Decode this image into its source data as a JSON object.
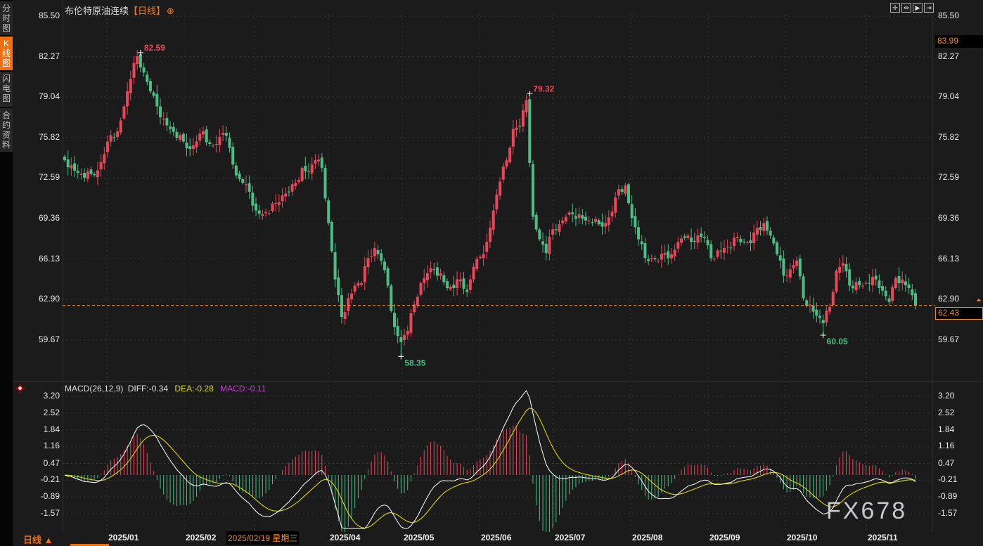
{
  "sidebar": {
    "tabs": [
      {
        "label": "分时图",
        "active": false
      },
      {
        "label": "K线图",
        "active": true
      },
      {
        "label": "闪电图",
        "active": false
      },
      {
        "label": "合约资料",
        "active": false
      }
    ]
  },
  "header": {
    "instrument": "布伦特原油连续",
    "period": "【日线】",
    "add_icon": "circle-plus-icon"
  },
  "toolbar": {
    "icons": [
      "crosshair-icon",
      "zoom-range-icon",
      "play-forward-icon",
      "jump-end-icon"
    ]
  },
  "price_axis": {
    "ticks": [
      "85.50",
      "82.27",
      "79.04",
      "75.82",
      "72.59",
      "69.36",
      "66.13",
      "62.90",
      "59.67"
    ],
    "crosshair_price": "83.99",
    "last_price": "62.43"
  },
  "colors": {
    "up": "#e8475a",
    "down": "#4dbd86",
    "accent": "#f07010",
    "diff": "#ffffff",
    "dea": "#e8e800",
    "macd": "#c040d0"
  },
  "macd": {
    "label": "MACD(26,12,9)",
    "diff": "DIFF:-0.34",
    "dea": "DEA:-0.28",
    "macd": "MACD:-0.11",
    "ticks": [
      "3.20",
      "2.52",
      "1.84",
      "1.16",
      "0.47",
      "-0.21",
      "-0.89",
      "-1.57"
    ]
  },
  "x_axis": {
    "months": [
      "2025/01",
      "2025/02",
      "2025/04",
      "2025/05",
      "2025/06",
      "2025/07",
      "2025/08",
      "2025/09",
      "2025/10",
      "2025/11"
    ],
    "cursor_date": "2025/02/19 星期三"
  },
  "footer": {
    "period": "日线 ▲",
    "watermark": "FX678"
  },
  "chart_data": {
    "type": "candlestick",
    "ylim": [
      57.5,
      85.5
    ],
    "last": 62.43,
    "extremes": [
      {
        "label": "82.59",
        "value": 82.59,
        "kind": "high"
      },
      {
        "label": "58.35",
        "value": 58.35,
        "kind": "low"
      },
      {
        "label": "79.32",
        "value": 79.32,
        "kind": "high"
      },
      {
        "label": "60.05",
        "value": 60.05,
        "kind": "low"
      }
    ],
    "closes": [
      74.0,
      73.6,
      73.0,
      72.6,
      72.9,
      73.2,
      74.5,
      76.0,
      76.3,
      78.3,
      80.5,
      82.3,
      81.0,
      79.5,
      78.3,
      77.3,
      76.5,
      75.8,
      75.5,
      74.9,
      75.5,
      76.3,
      75.3,
      75.3,
      76.2,
      75.0,
      72.8,
      72.2,
      71.5,
      70.0,
      69.7,
      69.8,
      70.6,
      71.2,
      71.5,
      72.2,
      73.4,
      73.1,
      74.0,
      73.4,
      69.0,
      64.5,
      61.5,
      63.0,
      64.0,
      64.2,
      66.2,
      67.0,
      66.0,
      64.0,
      60.7,
      59.5,
      60.4,
      62.5,
      64.2,
      65.0,
      65.3,
      65.0,
      63.8,
      63.8,
      64.5,
      63.5,
      65.5,
      66.3,
      67.5,
      70.0,
      72.3,
      74.0,
      76.5,
      76.7,
      78.8,
      69.5,
      67.7,
      66.6,
      68.5,
      68.9,
      69.5,
      69.7,
      69.7,
      69.2,
      69.0,
      68.9,
      69.0,
      69.9,
      71.7,
      72.0,
      69.4,
      67.7,
      66.2,
      66.2,
      66.0,
      66.6,
      66.5,
      67.5,
      67.8,
      67.5,
      68.0,
      67.8,
      66.2,
      66.8,
      67.0,
      67.0,
      67.9,
      67.5,
      67.4,
      68.6,
      69.0,
      68.0,
      66.5,
      64.8,
      65.3,
      66.0,
      63.0,
      62.5,
      61.6,
      61.0,
      62.3,
      65.2,
      65.8,
      64.0,
      64.3,
      64.0,
      64.2,
      64.5,
      63.6,
      62.7,
      64.6,
      64.5,
      63.8,
      62.43
    ]
  }
}
